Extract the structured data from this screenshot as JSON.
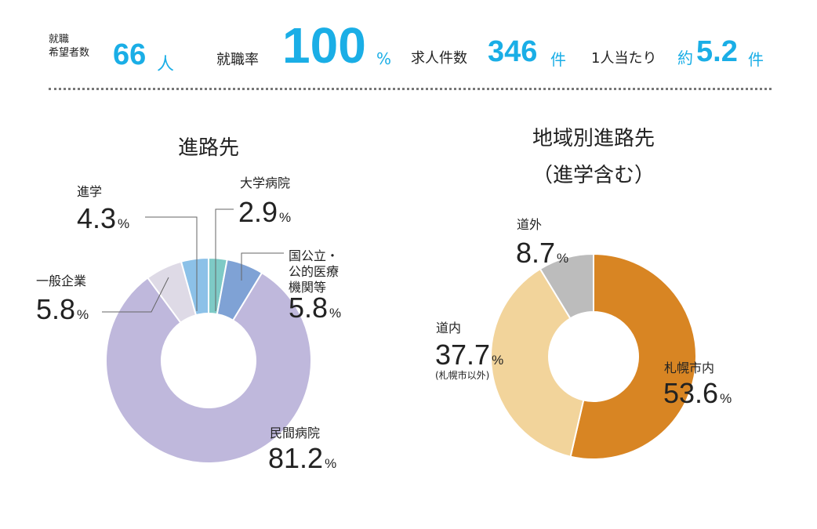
{
  "stats": {
    "applicants_label_1": "就職",
    "applicants_label_2": "希望者数",
    "applicants_value": "66",
    "applicants_unit": "人",
    "rate_label": "就職率",
    "rate_value": "100",
    "rate_unit": "%",
    "offers_label": "求人件数",
    "offers_value": "346",
    "offers_unit": "件",
    "per_person_label": "1人当たり",
    "per_person_prefix": "約",
    "per_person_value": "5.2",
    "per_person_unit": "件"
  },
  "colors": {
    "accent": "#1aaee6"
  },
  "chart_data": [
    {
      "type": "pie",
      "title": "進路先",
      "donut": true,
      "start": "top",
      "direction": "clockwise",
      "slices": [
        {
          "label": "大学病院",
          "value": 2.9,
          "display": "2.9",
          "unit": "%",
          "color": "#7ecac6"
        },
        {
          "label_lines": [
            "国公立・",
            "公的医療",
            "機関等"
          ],
          "value": 5.8,
          "display": "5.8",
          "unit": "%",
          "color": "#7fa2d5"
        },
        {
          "label": "民間病院",
          "value": 81.2,
          "display": "81.2",
          "unit": "%",
          "color": "#bfb8dc"
        },
        {
          "label": "一般企業",
          "value": 5.8,
          "display": "5.8",
          "unit": "%",
          "color": "#dedae6"
        },
        {
          "label": "進学",
          "value": 4.3,
          "display": "4.3",
          "unit": "%",
          "color": "#8cc1e8"
        }
      ]
    },
    {
      "type": "pie",
      "title_lines": [
        "地域別進路先",
        "（進学含む）"
      ],
      "donut": true,
      "start": "top",
      "direction": "clockwise",
      "slices": [
        {
          "label": "札幌市内",
          "value": 53.6,
          "display": "53.6",
          "unit": "%",
          "color": "#d88523"
        },
        {
          "label": "道内",
          "note": "(札幌市以外)",
          "value": 37.7,
          "display": "37.7",
          "unit": "%",
          "color": "#f2d49b"
        },
        {
          "label": "道外",
          "value": 8.7,
          "display": "8.7",
          "unit": "%",
          "color": "#bcbcbc"
        }
      ]
    }
  ]
}
